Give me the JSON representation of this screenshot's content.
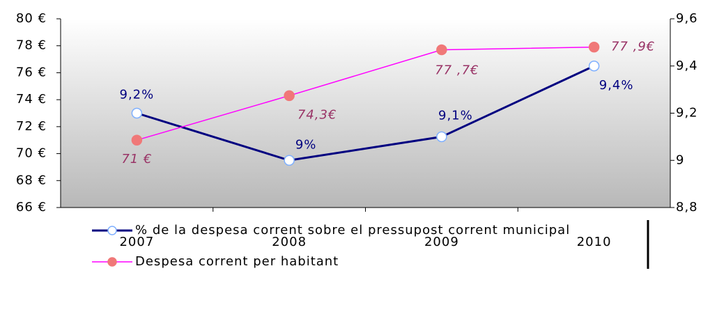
{
  "chart_data": {
    "type": "line",
    "categories": [
      "2007",
      "2008",
      "2009",
      "2010"
    ],
    "ylim": [
      66,
      80
    ],
    "yticks": [
      {
        "value": 66,
        "label": "66 €"
      },
      {
        "value": 68,
        "label": "68 €"
      },
      {
        "value": 70,
        "label": "70 €"
      },
      {
        "value": 72,
        "label": "72 €"
      },
      {
        "value": 74,
        "label": "74 €"
      },
      {
        "value": 76,
        "label": "76 €"
      },
      {
        "value": 78,
        "label": "78 €"
      },
      {
        "value": 80,
        "label": "80 €"
      }
    ],
    "y2lim": [
      8.8,
      9.6
    ],
    "y2ticks": [
      {
        "value": 8.8,
        "label": "8,8"
      },
      9,
      {
        "value": 9.2,
        "label": "9,2"
      },
      {
        "value": 9.4,
        "label": "9,4"
      },
      {
        "value": 9.6,
        "label": "9,6"
      }
    ],
    "series": [
      {
        "name": "% de la despesa corrent sobre el pressupost corrent municipal",
        "color": "#000080",
        "marker_color": "#ffffff",
        "marker_edge": "#7fb0ff",
        "label_color": "#000080",
        "axis": "y2",
        "values": [
          9.2,
          9,
          9.1,
          9.4
        ],
        "value_labels": [
          "9,2%",
          "9%",
          "9,1%",
          "9,4%"
        ]
      },
      {
        "name": "Despesa corrent per habitant",
        "color": "#ff00ff",
        "marker_color": "#f07878",
        "marker_edge": "#f07878",
        "label_color": "#993366",
        "label_style": "italic",
        "values": [
          71,
          74.3,
          77.7,
          77.9
        ],
        "value_labels": [
          "71 €",
          "74,3€",
          "77 ,7€",
          "77 ,9€"
        ]
      }
    ],
    "legend": "bottom"
  }
}
